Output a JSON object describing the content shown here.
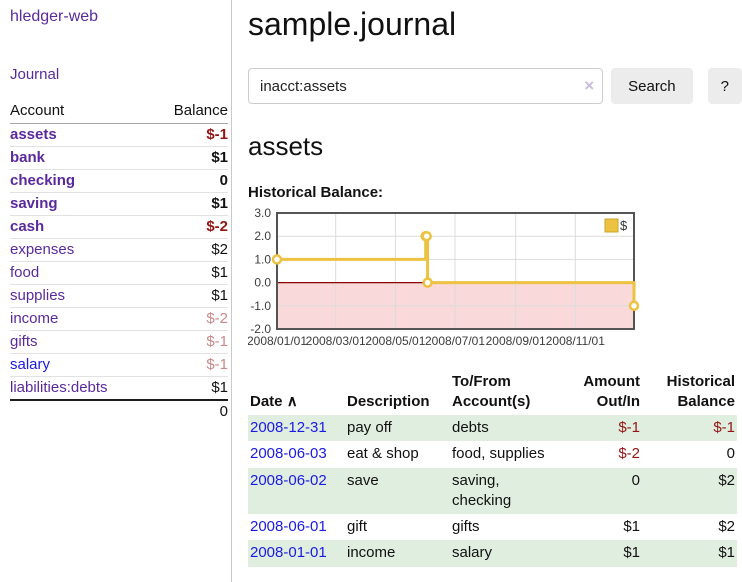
{
  "colors": {
    "link_purple": "#5a2a9d",
    "link_blue": "#1a1ae6",
    "neg_strong": "#951515",
    "neg_soft": "#c98989",
    "row_green": "#e0eee0",
    "grid": "#dcdcdc",
    "tick_text": "#3c3c3c"
  },
  "app_title": "hledger-web",
  "sidebar": {
    "journal_link": "Journal",
    "accounts_table": {
      "headers": [
        "Account",
        "Balance"
      ],
      "rows": [
        {
          "name": "assets",
          "balance": "$-1",
          "indent": 0,
          "emph": true,
          "balance_color": "neg",
          "link": "purple"
        },
        {
          "name": "bank",
          "balance": "$1",
          "indent": 1,
          "emph": true,
          "balance_color": "plain",
          "link": "purple"
        },
        {
          "name": "checking",
          "balance": "0",
          "indent": 2,
          "emph": true,
          "balance_color": "plain",
          "link": "purple"
        },
        {
          "name": "saving",
          "balance": "$1",
          "indent": 2,
          "emph": true,
          "balance_color": "plain",
          "link": "purple"
        },
        {
          "name": "cash",
          "balance": "$-2",
          "indent": 1,
          "emph": true,
          "balance_color": "neg",
          "link": "purple"
        },
        {
          "name": "expenses",
          "balance": "$2",
          "indent": 0,
          "emph": false,
          "balance_color": "plain",
          "link": "purple"
        },
        {
          "name": "food",
          "balance": "$1",
          "indent": 1,
          "emph": false,
          "balance_color": "plain",
          "link": "purple"
        },
        {
          "name": "supplies",
          "balance": "$1",
          "indent": 1,
          "emph": false,
          "balance_color": "plain",
          "link": "purple"
        },
        {
          "name": "income",
          "balance": "$-2",
          "indent": 0,
          "emph": false,
          "balance_color": "neg-soft",
          "link": "purple"
        },
        {
          "name": "gifts",
          "balance": "$-1",
          "indent": 1,
          "emph": false,
          "balance_color": "neg-soft",
          "link": "purple"
        },
        {
          "name": "salary",
          "balance": "$-1",
          "indent": 1,
          "emph": false,
          "balance_color": "neg-soft",
          "link": "blue"
        },
        {
          "name": "liabilities:debts",
          "balance": "$1",
          "indent": 0,
          "emph": false,
          "balance_color": "plain",
          "link": "purple"
        }
      ],
      "total": "0"
    }
  },
  "main": {
    "title": "sample.journal",
    "search": {
      "value": "inacct:assets",
      "clear_icon": "×",
      "search_button": "Search",
      "help_button": "?"
    },
    "account_heading": "assets",
    "chart_title": "Historical Balance:",
    "register": {
      "headers": {
        "date": "Date",
        "sort_indicator": "∧",
        "description": "Description",
        "accounts": "To/From Account(s)",
        "amount": "Amount Out/In",
        "balance": "Historical Balance"
      },
      "rows": [
        {
          "date": "2008-12-31",
          "description": "pay off",
          "accounts": "debts",
          "amount": "$-1",
          "balance": "$-1",
          "amount_negative": true,
          "balance_negative": true
        },
        {
          "date": "2008-06-03",
          "description": "eat & shop",
          "accounts": "food, supplies",
          "amount": "$-2",
          "balance": "0",
          "amount_negative": true,
          "balance_negative": false
        },
        {
          "date": "2008-06-02",
          "description": "save",
          "accounts": "saving, checking",
          "amount": "0",
          "balance": "$2",
          "amount_negative": false,
          "balance_negative": false
        },
        {
          "date": "2008-06-01",
          "description": "gift",
          "accounts": "gifts",
          "amount": "$1",
          "balance": "$2",
          "amount_negative": false,
          "balance_negative": false
        },
        {
          "date": "2008-01-01",
          "description": "income",
          "accounts": "salary",
          "amount": "$1",
          "balance": "$1",
          "amount_negative": false,
          "balance_negative": false
        }
      ]
    }
  },
  "chart_data": {
    "type": "line",
    "style": "steps",
    "title": "Historical Balance",
    "series": [
      {
        "name": "$",
        "color": "#edc240",
        "marker_fill": "#ffffff",
        "points": [
          [
            "2008-01-01",
            1
          ],
          [
            "2008-06-01",
            2
          ],
          [
            "2008-06-02",
            2
          ],
          [
            "2008-06-03",
            0
          ],
          [
            "2008-12-31",
            -1
          ]
        ]
      }
    ],
    "xlim": [
      "2008-01-01",
      "2008-12-31"
    ],
    "ylim": [
      -2,
      3
    ],
    "yticks": [
      3.0,
      2.0,
      1.0,
      0.0,
      -1.0,
      -2.0
    ],
    "xticks": [
      "2008/01/01",
      "2008/03/01",
      "2008/05/01",
      "2008/07/01",
      "2008/09/01",
      "2008/11/01"
    ],
    "grid": true,
    "legend_position": "top-right",
    "negative_fill": "#f9d9d9",
    "zero_line_color": "#8b0000",
    "border_color": "#545454"
  }
}
